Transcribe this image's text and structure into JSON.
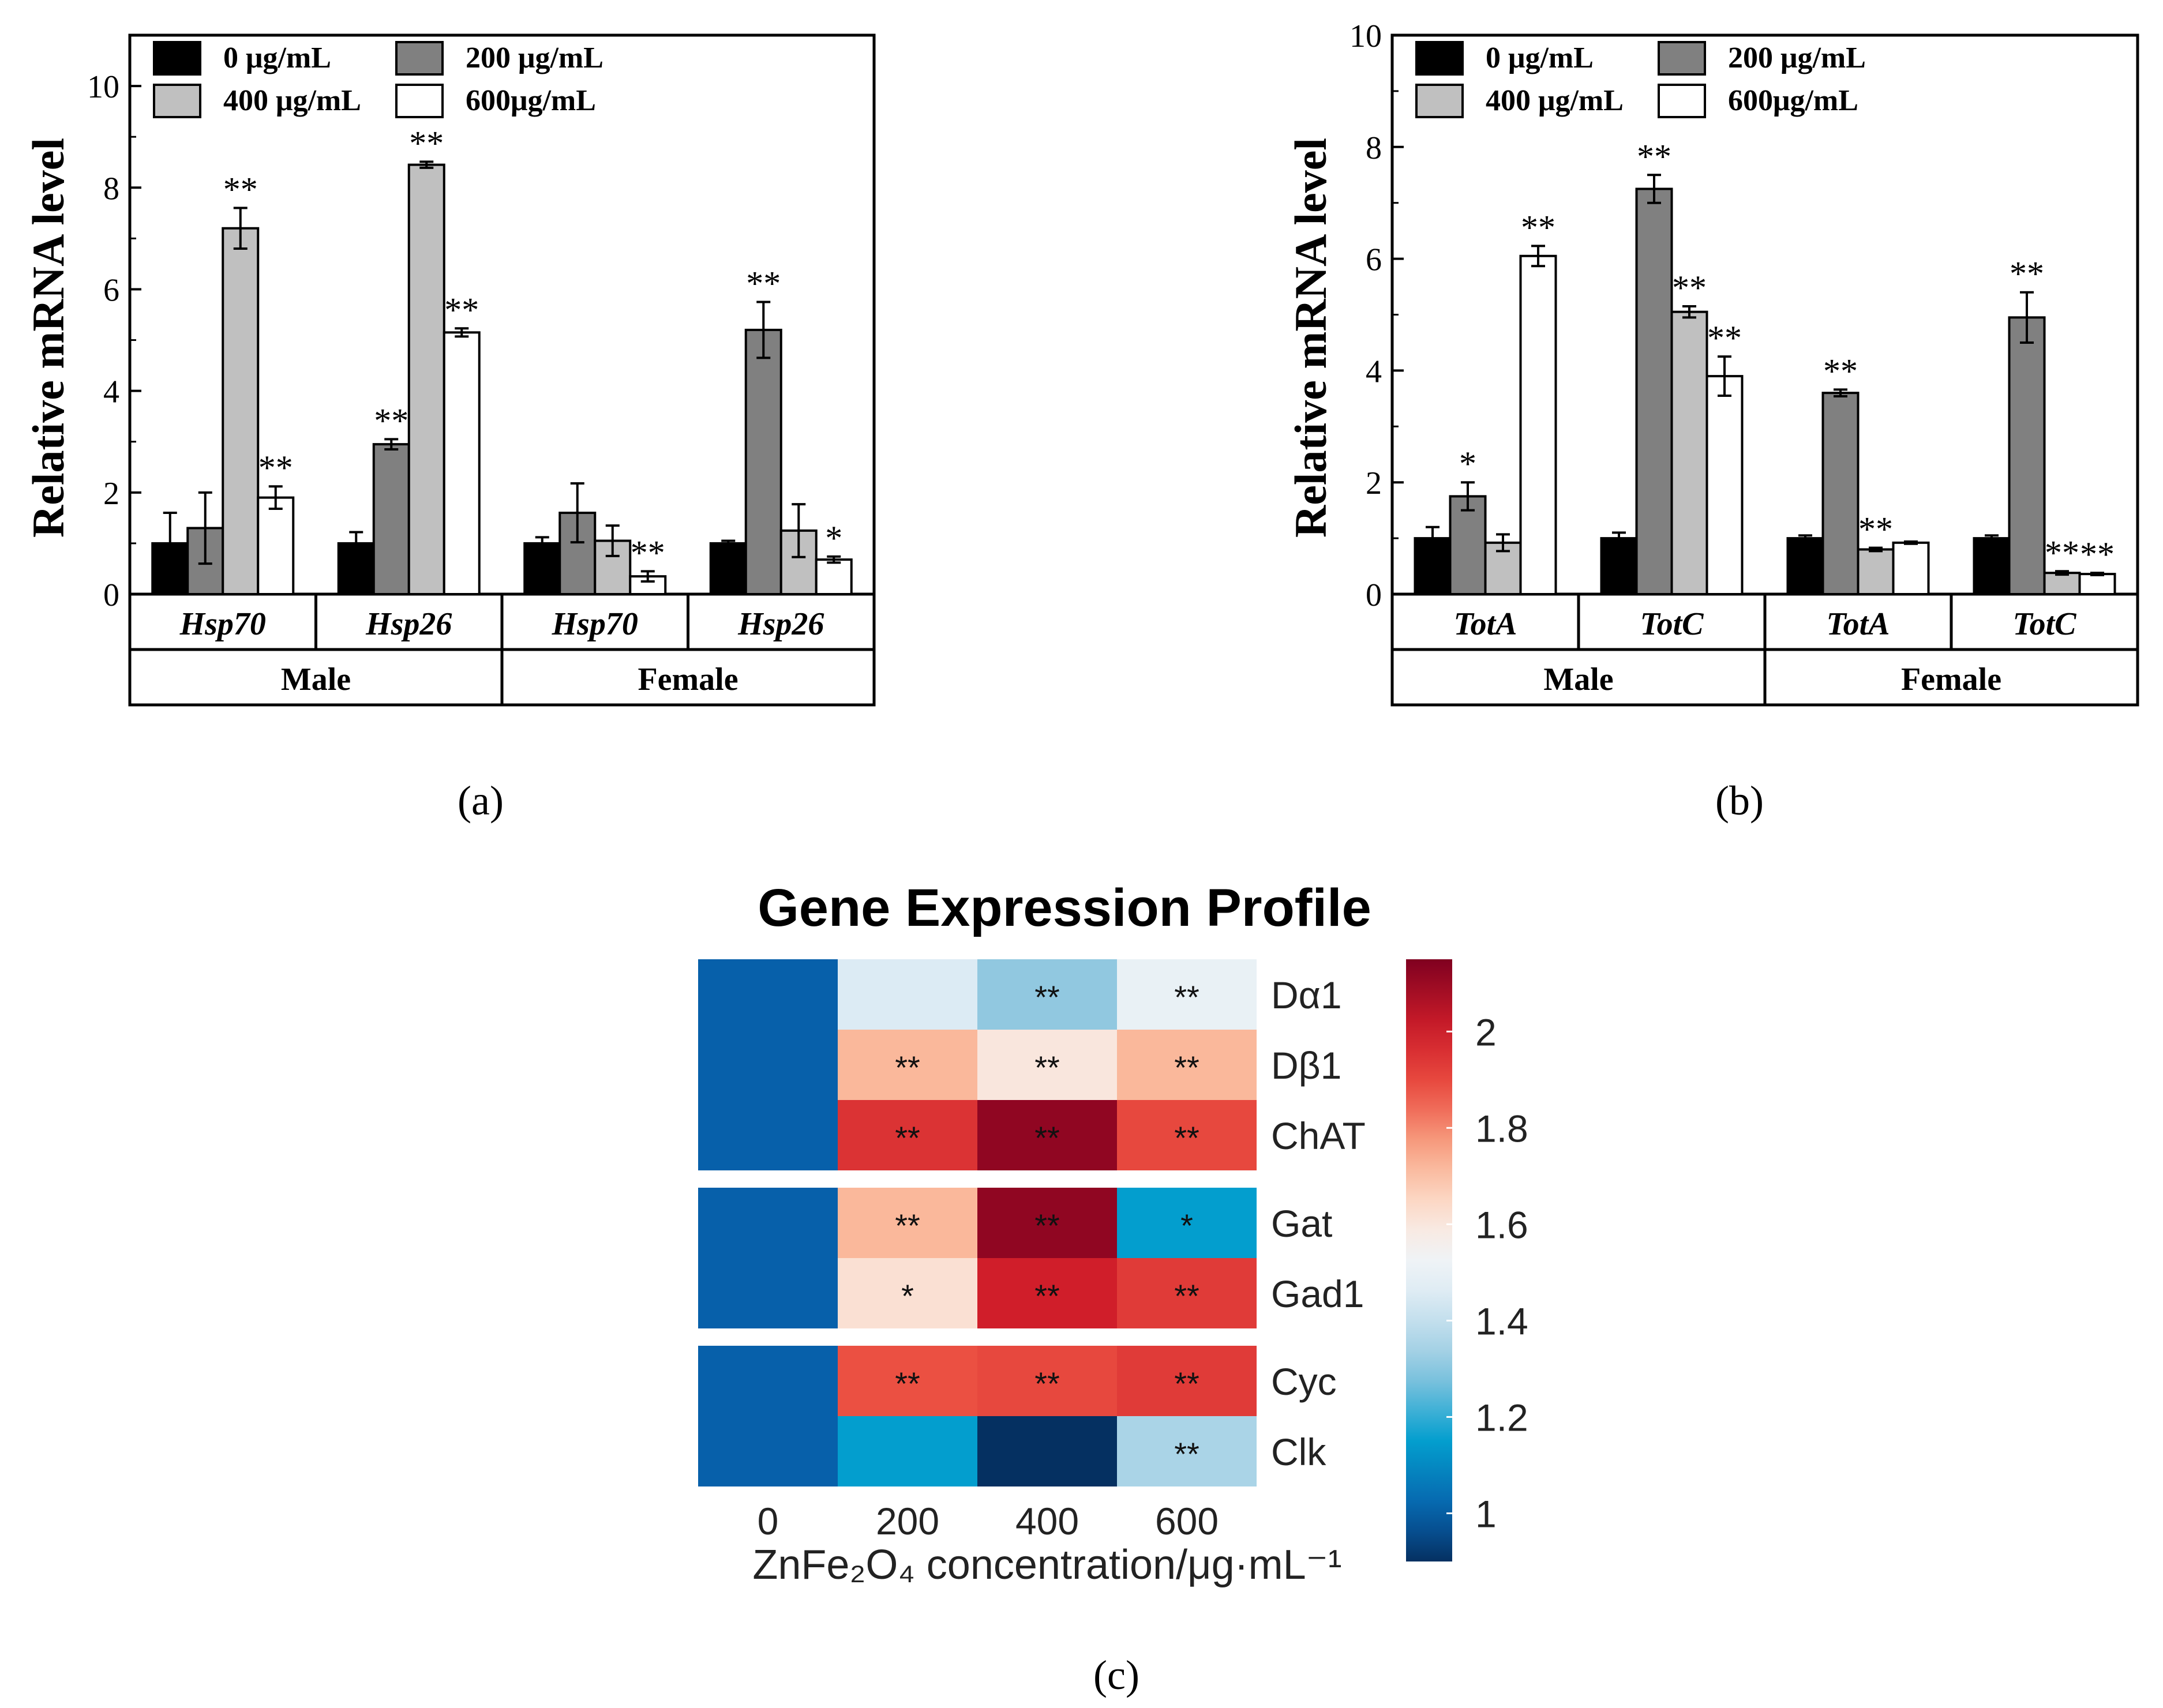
{
  "figure": {
    "panel_labels": [
      "(a)",
      "(b)",
      "(c)"
    ],
    "legend": [
      "0 μg/mL",
      "200 μg/mL",
      "400 μg/mL",
      "600μg/mL"
    ],
    "ylabel": "Relative mRNA level"
  },
  "chart_data": [
    {
      "id": "a",
      "type": "bar",
      "title": "",
      "ylabel": "Relative mRNA level",
      "ylim": [
        0,
        11
      ],
      "yticks": [
        0,
        2,
        4,
        6,
        8,
        10
      ],
      "groups": [
        "Male",
        "Female"
      ],
      "categories": [
        "Hsp70",
        "Hsp26",
        "Hsp70",
        "Hsp26"
      ],
      "series": [
        {
          "name": "0 μg/mL",
          "color": "#000000",
          "values": [
            1.0,
            1.0,
            1.0,
            1.0
          ],
          "errors": [
            0.6,
            0.22,
            0.12,
            0.05
          ],
          "sig": [
            "",
            "",
            "",
            ""
          ]
        },
        {
          "name": "200 μg/mL",
          "color": "#808080",
          "values": [
            1.3,
            2.95,
            1.6,
            5.2
          ],
          "errors": [
            0.7,
            0.1,
            0.58,
            0.55
          ],
          "sig": [
            "",
            "**",
            "",
            "**"
          ]
        },
        {
          "name": "400 μg/mL",
          "color": "#c0c0c0",
          "values": [
            7.2,
            8.45,
            1.05,
            1.25
          ],
          "errors": [
            0.4,
            0.06,
            0.3,
            0.52
          ],
          "sig": [
            "**",
            "**",
            "",
            ""
          ]
        },
        {
          "name": "600μg/mL",
          "color": "#ffffff",
          "values": [
            1.9,
            5.15,
            0.35,
            0.68
          ],
          "errors": [
            0.22,
            0.08,
            0.1,
            0.06
          ],
          "sig": [
            "**",
            "**",
            "**",
            "*"
          ]
        }
      ]
    },
    {
      "id": "b",
      "type": "bar",
      "title": "",
      "ylabel": "Relative mRNA level",
      "ylim": [
        0,
        10
      ],
      "yticks": [
        0,
        2,
        4,
        6,
        8,
        10
      ],
      "groups": [
        "Male",
        "Female"
      ],
      "categories": [
        "TotA",
        "TotC",
        "TotA",
        "TotC"
      ],
      "series": [
        {
          "name": "0 μg/mL",
          "color": "#000000",
          "values": [
            1.0,
            1.0,
            1.0,
            1.0
          ],
          "errors": [
            0.2,
            0.1,
            0.05,
            0.05
          ],
          "sig": [
            "",
            "",
            "",
            ""
          ]
        },
        {
          "name": "200 μg/mL",
          "color": "#808080",
          "values": [
            1.75,
            7.25,
            3.6,
            4.95
          ],
          "errors": [
            0.25,
            0.25,
            0.06,
            0.45
          ],
          "sig": [
            "*",
            "**",
            "**",
            "**"
          ]
        },
        {
          "name": "400 μg/mL",
          "color": "#c0c0c0",
          "values": [
            0.92,
            5.05,
            0.8,
            0.38
          ],
          "errors": [
            0.15,
            0.1,
            0.03,
            0.03
          ],
          "sig": [
            "",
            "**",
            "**",
            "**"
          ]
        },
        {
          "name": "600μg/mL",
          "color": "#ffffff",
          "values": [
            6.05,
            3.9,
            0.92,
            0.36
          ],
          "errors": [
            0.18,
            0.35,
            0.02,
            0.02
          ],
          "sig": [
            "**",
            "**",
            "",
            "**"
          ]
        }
      ]
    },
    {
      "id": "c",
      "type": "heatmap",
      "title": "Gene Expression Profile",
      "xlabel": "ZnFe₂O₄ concentration/μg·mL⁻¹",
      "x": [
        "0",
        "200",
        "400",
        "600"
      ],
      "rows": [
        "Dα1",
        "Dβ1",
        "ChAT",
        "Gat",
        "Gad1",
        "Cyc",
        "Clk"
      ],
      "row_groups": [
        [
          "Dα1",
          "Dβ1",
          "ChAT"
        ],
        [
          "Gat",
          "Gad1"
        ],
        [
          "Cyc",
          "Clk"
        ]
      ],
      "values": [
        [
          1.0,
          1.45,
          1.3,
          1.5
        ],
        [
          1.0,
          1.72,
          1.6,
          1.72
        ],
        [
          1.0,
          1.95,
          2.12,
          1.9
        ],
        [
          1.0,
          1.72,
          2.12,
          1.15
        ],
        [
          1.0,
          1.62,
          2.0,
          1.93
        ],
        [
          1.0,
          1.88,
          1.9,
          1.93
        ],
        [
          1.0,
          1.15,
          0.9,
          1.35
        ]
      ],
      "sig": [
        [
          "",
          "",
          "**",
          "**"
        ],
        [
          "",
          "**",
          "**",
          "**"
        ],
        [
          "",
          "**",
          "**",
          "**"
        ],
        [
          "",
          "**",
          "**",
          "*"
        ],
        [
          "",
          "*",
          "**",
          "**"
        ],
        [
          "",
          "**",
          "**",
          "**"
        ],
        [
          "",
          "",
          "",
          "**"
        ]
      ],
      "colorbar": {
        "range": [
          0.9,
          2.15
        ],
        "ticks": [
          "1",
          "1.2",
          "1.4",
          "1.6",
          "1.8",
          "2"
        ]
      }
    }
  ]
}
